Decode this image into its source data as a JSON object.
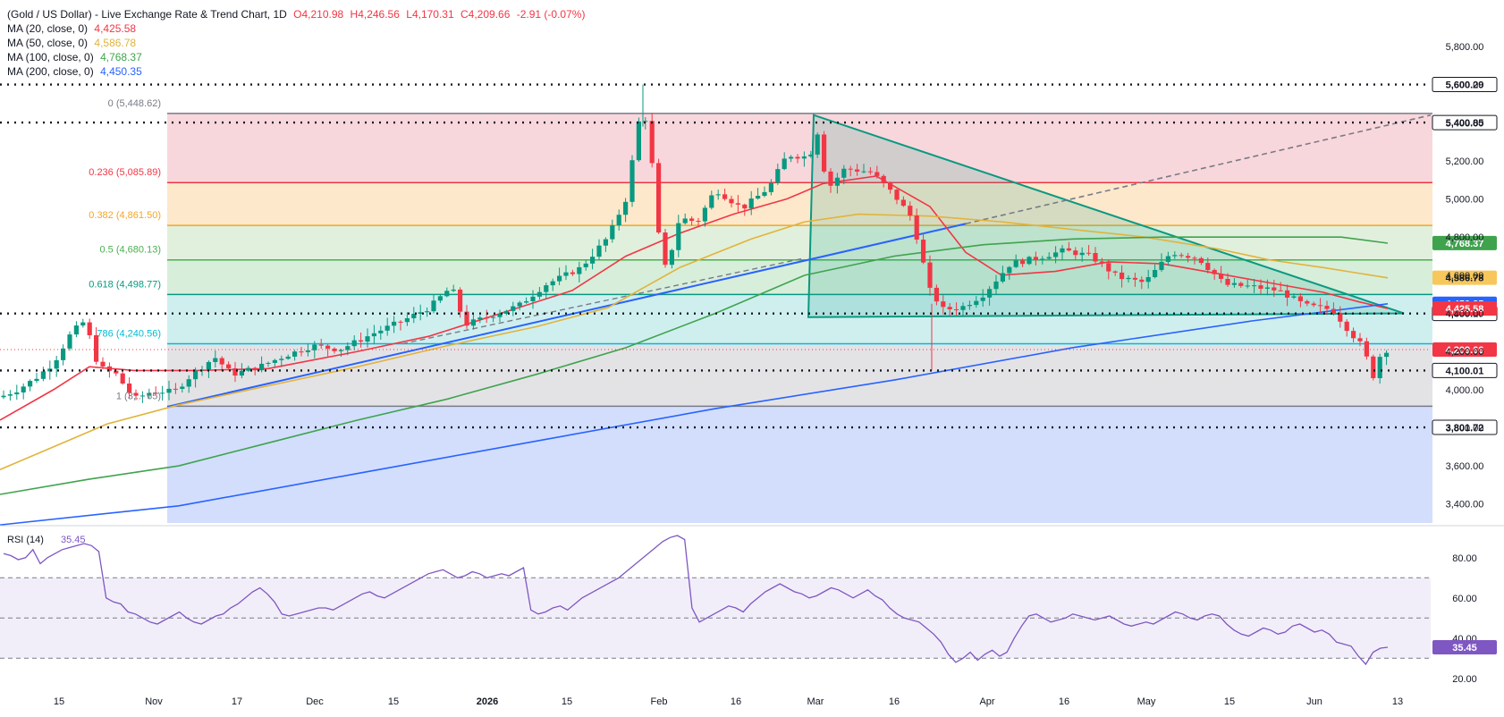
{
  "chart_data": [
    {
      "type": "candlestick",
      "title": "(Gold / US Dollar) - Live Exchange Rate & Trend Chart, 1D",
      "ohlc_label": {
        "open": "O4,210.98",
        "high": "H4,246.56",
        "low": "L4,170.31",
        "close": "C4,209.66",
        "change": "-2.91 (-0.07%)"
      },
      "ylim": [
        3300,
        5950
      ],
      "y_ticks": [
        "3,400.00",
        "3,600.00",
        "3,800.00",
        "4,000.00",
        "4,200.00",
        "4,400.00",
        "4,600.00",
        "4,800.00",
        "5,000.00",
        "5,200.00",
        "5,400.00",
        "5,600.00",
        "5,800.00"
      ],
      "x_ticks": [
        "15",
        "Nov",
        "17",
        "Dec",
        "15",
        "2026",
        "15",
        "Feb",
        "16",
        "Mar",
        "16",
        "Apr",
        "16",
        "May",
        "15",
        "Jun",
        "13"
      ],
      "moving_averages": [
        {
          "name": "MA (20, close, 0)",
          "value": "4,425.58",
          "color": "#f23645"
        },
        {
          "name": "MA (50, close, 0)",
          "value": "4,586.78",
          "color": "#e2b33a"
        },
        {
          "name": "MA (100, close, 0)",
          "value": "4,768.37",
          "color": "#3fa34d"
        },
        {
          "name": "MA (200, close, 0)",
          "value": "4,450.35",
          "color": "#2962ff"
        }
      ],
      "fibonacci": [
        {
          "label": "0 (5,448.62)",
          "level": 5448.62
        },
        {
          "label": "0.236 (5,085.89)",
          "level": 5085.89
        },
        {
          "label": "0.382 (4,861.50)",
          "level": 4861.5
        },
        {
          "label": "0.5 (4,680.13)",
          "level": 4680.13
        },
        {
          "label": "0.618 (4,498.77)",
          "level": 4498.77
        },
        {
          "label": "786 (4,240.56)",
          "level": 4240.56
        },
        {
          "label": "1 (3,... 65)",
          "level": 3912.65
        }
      ],
      "horizontal_levels": [
        {
          "label": "5,600.29",
          "value": 5600.29
        },
        {
          "label": "5,400.85",
          "value": 5400.85
        },
        {
          "label": "4,399.17",
          "value": 4399.17
        },
        {
          "label": "4,100.01",
          "value": 4100.01
        },
        {
          "label": "3,801.72",
          "value": 3801.72
        }
      ],
      "price_badges": [
        {
          "label": "4,768.37",
          "value": 4768.37,
          "color": "#3fa34d"
        },
        {
          "label": "4,586.78",
          "value": 4586.78,
          "color": "#f7c75b"
        },
        {
          "label": "4,450.35",
          "value": 4450.35,
          "color": "#2962ff"
        },
        {
          "label": "4,425.58",
          "value": 4425.58,
          "color": "#f23645"
        },
        {
          "label": "4,209.66",
          "value": 4209.66,
          "color": "#f23645"
        }
      ]
    },
    {
      "type": "line",
      "title": "RSI (14)",
      "value": "35.45",
      "ylim": [
        15,
        95
      ],
      "y_ticks": [
        "20.00",
        "40.00",
        "60.00",
        "80.00"
      ],
      "band": [
        30,
        70
      ],
      "color": "#7e57c2",
      "values": [
        82,
        81,
        79,
        80,
        84,
        77,
        80,
        82,
        84,
        85,
        86,
        87,
        86,
        83,
        60,
        58,
        57,
        53,
        52,
        50,
        48,
        47,
        49,
        51,
        53,
        50,
        48,
        47,
        49,
        51,
        52,
        55,
        57,
        60,
        63,
        65,
        62,
        58,
        52,
        51,
        52,
        53,
        54,
        55,
        55,
        54,
        56,
        58,
        60,
        62,
        63,
        61,
        60,
        62,
        64,
        66,
        68,
        70,
        72,
        73,
        74,
        72,
        70,
        71,
        73,
        72,
        70,
        71,
        72,
        71,
        73,
        75,
        54,
        52,
        53,
        55,
        56,
        54,
        57,
        60,
        62,
        64,
        66,
        68,
        70,
        73,
        76,
        79,
        82,
        85,
        88,
        90,
        91,
        89,
        55,
        48,
        50,
        52,
        54,
        56,
        55,
        53,
        57,
        60,
        63,
        65,
        67,
        65,
        63,
        62,
        60,
        61,
        63,
        65,
        64,
        62,
        60,
        62,
        64,
        61,
        59,
        55,
        52,
        50,
        49,
        48,
        45,
        42,
        38,
        32,
        28,
        30,
        33,
        29,
        32,
        34,
        31,
        33,
        40,
        46,
        51,
        52,
        50,
        48,
        49,
        50,
        52,
        51,
        50,
        49,
        50,
        51,
        49,
        47,
        46,
        47,
        48,
        47,
        49,
        51,
        53,
        52,
        50,
        49,
        51,
        52,
        51,
        47,
        44,
        42,
        41,
        43,
        45,
        44,
        42,
        43,
        46,
        47,
        45,
        43,
        44,
        42,
        38,
        37,
        36,
        31,
        27,
        33,
        35,
        35.45
      ]
    }
  ]
}
